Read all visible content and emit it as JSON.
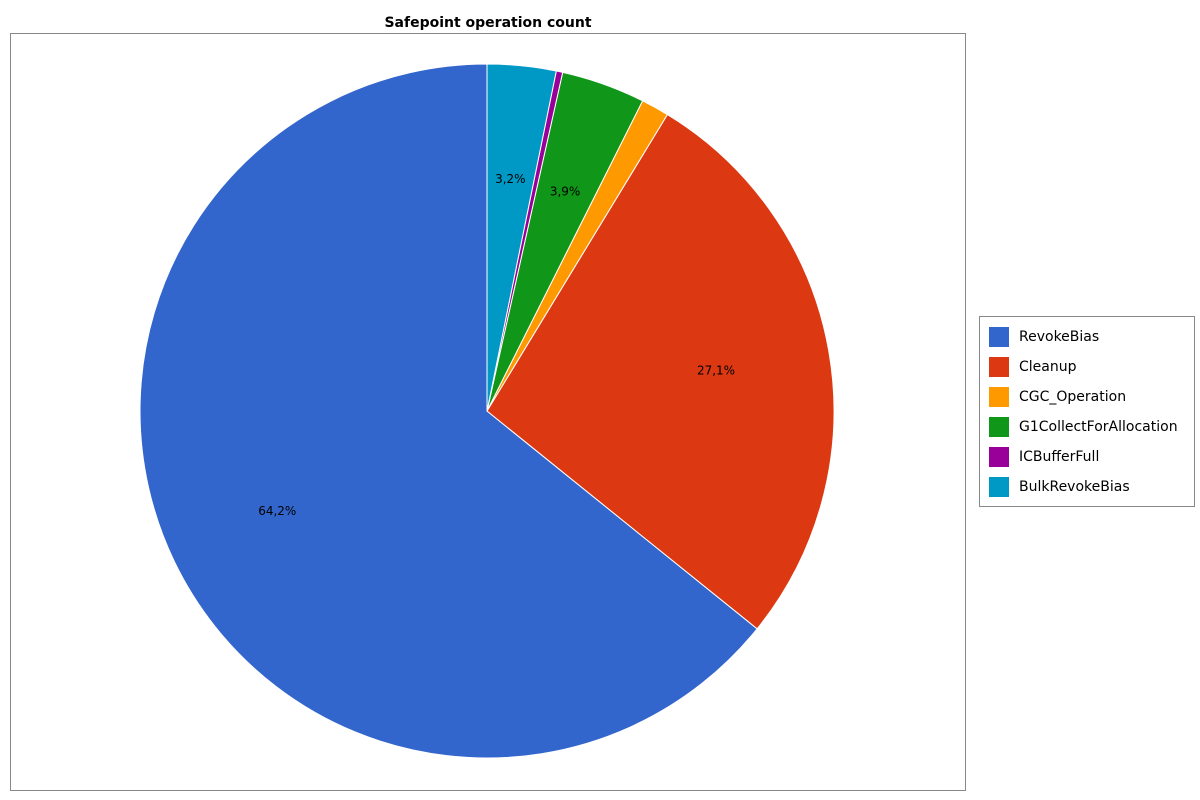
{
  "chart_data": {
    "type": "pie",
    "title": "Safepoint operation count",
    "categories": [
      "RevokeBias",
      "Cleanup",
      "CGC_Operation",
      "G1CollectForAllocation",
      "ICBufferFull",
      "BulkRevokeBias"
    ],
    "values": [
      64.2,
      27.1,
      1.3,
      3.9,
      0.3,
      3.2
    ],
    "value_labels": [
      "64,2%",
      "27,1%",
      null,
      "3,9%",
      null,
      "3,2%"
    ],
    "colors": [
      "#3366cc",
      "#dc3912",
      "#ff9900",
      "#109618",
      "#990099",
      "#0099c6"
    ],
    "legend": "right"
  }
}
